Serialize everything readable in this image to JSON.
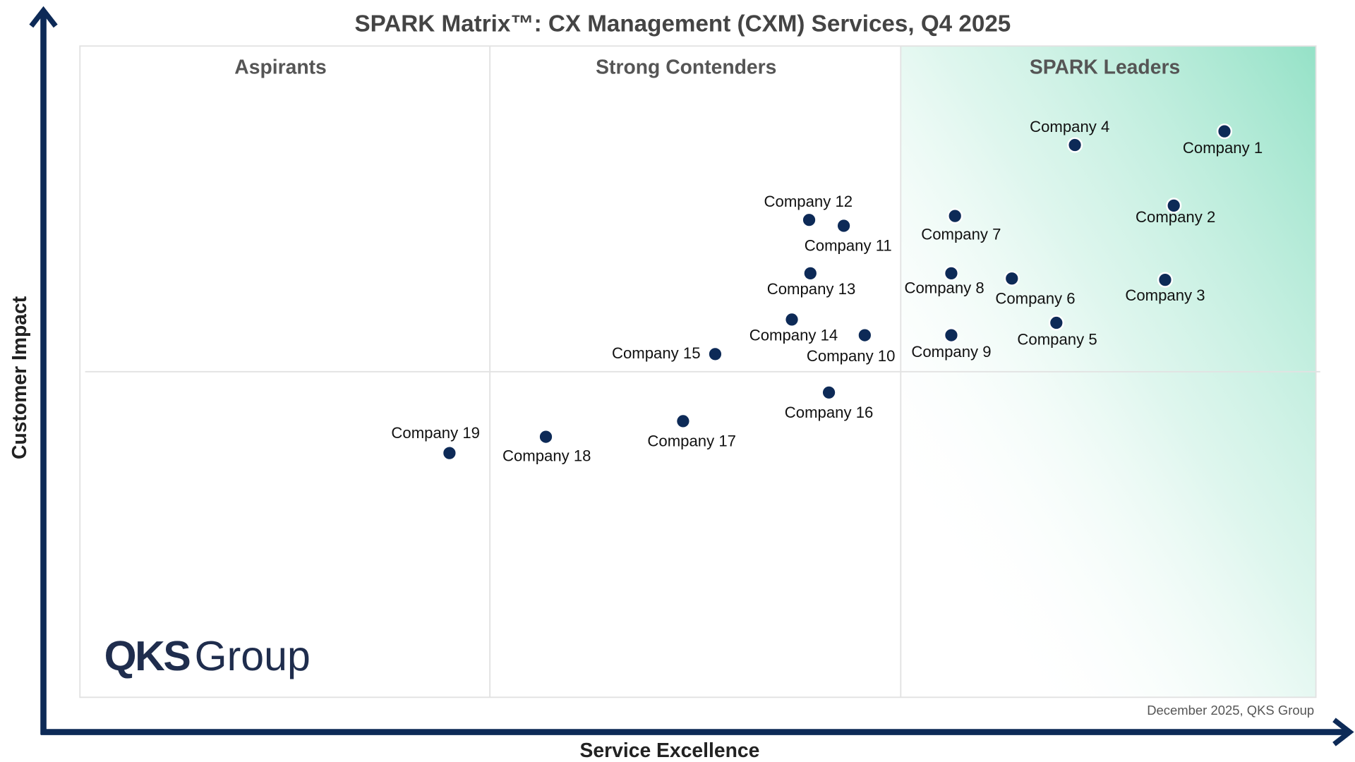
{
  "chart_data": {
    "type": "scatter",
    "title": "SPARK Matrix™: CX Management (CXM) Services, Q4 2025",
    "xlabel": "Service Excellence",
    "ylabel": "Customer Impact",
    "xlim": [
      0,
      100
    ],
    "ylim": [
      0,
      100
    ],
    "grid": false,
    "quadrants": [
      "Aspirants",
      "Strong Contenders",
      "SPARK Leaders"
    ],
    "source_note": "December 2025, QKS Group",
    "logo_text": "QKS Group",
    "colors": {
      "point": "#0d2a57",
      "axis": "#0d2a57",
      "leaders_gradient": "#8fe0c4",
      "header_text": "#555555"
    },
    "points": [
      {
        "name": "Company 1",
        "x": 92.6,
        "y": 86.9
      },
      {
        "name": "Company 2",
        "x": 88.5,
        "y": 75.5
      },
      {
        "name": "Company 3",
        "x": 87.8,
        "y": 64.1
      },
      {
        "name": "Company 4",
        "x": 80.5,
        "y": 84.8
      },
      {
        "name": "Company 5",
        "x": 79.0,
        "y": 57.5
      },
      {
        "name": "Company 6",
        "x": 75.4,
        "y": 64.3
      },
      {
        "name": "Company 7",
        "x": 70.8,
        "y": 73.9
      },
      {
        "name": "Company 8",
        "x": 70.5,
        "y": 65.1
      },
      {
        "name": "Company 9",
        "x": 70.5,
        "y": 55.6
      },
      {
        "name": "Company 10",
        "x": 63.5,
        "y": 55.6
      },
      {
        "name": "Company 11",
        "x": 61.8,
        "y": 72.4
      },
      {
        "name": "Company 12",
        "x": 59.0,
        "y": 73.3
      },
      {
        "name": "Company 13",
        "x": 59.1,
        "y": 65.1
      },
      {
        "name": "Company 14",
        "x": 57.6,
        "y": 58.0
      },
      {
        "name": "Company 15",
        "x": 51.4,
        "y": 52.7
      },
      {
        "name": "Company 16",
        "x": 60.6,
        "y": 46.8
      },
      {
        "name": "Company 17",
        "x": 48.8,
        "y": 42.4
      },
      {
        "name": "Company 18",
        "x": 37.7,
        "y": 40.0
      },
      {
        "name": "Company 19",
        "x": 29.9,
        "y": 37.5
      }
    ]
  }
}
